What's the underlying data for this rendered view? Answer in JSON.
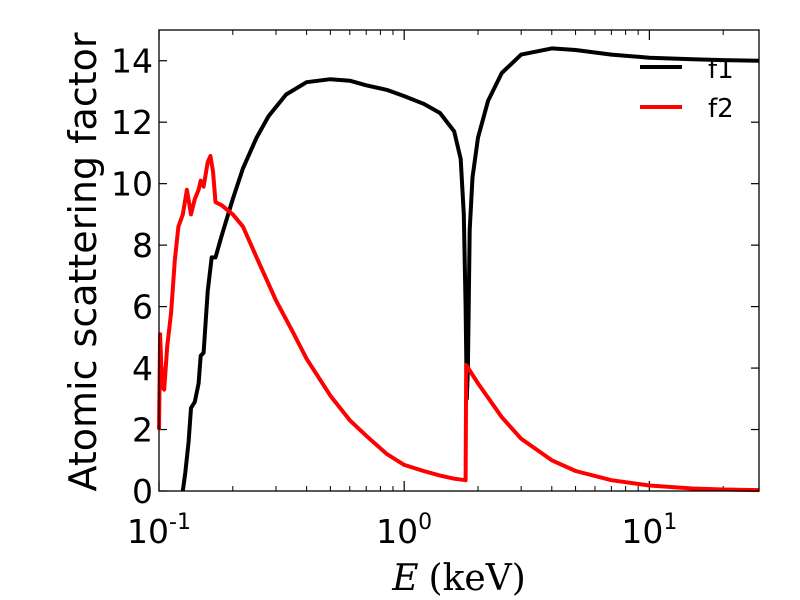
{
  "chart_data": {
    "type": "line",
    "title": "",
    "xlabel": {
      "var": "E",
      "unit": "(keV)"
    },
    "ylabel": "Atomic scattering factor",
    "xscale": "log",
    "xlim": [
      0.1,
      28
    ],
    "ylim": [
      0,
      15
    ],
    "grid": false,
    "legend_position": "top-right",
    "y_ticks": [
      "0",
      "2",
      "4",
      "6",
      "8",
      "10",
      "12",
      "14"
    ],
    "x_ticks": [
      {
        "base": "10",
        "exp": "-1"
      },
      {
        "base": "10",
        "exp": "0"
      },
      {
        "base": "10",
        "exp": "1"
      }
    ],
    "series": [
      {
        "name": "f1",
        "color": "#000000",
        "points": [
          [
            0.125,
            0.0
          ],
          [
            0.128,
            0.6
          ],
          [
            0.132,
            1.6
          ],
          [
            0.135,
            2.7
          ],
          [
            0.14,
            2.9
          ],
          [
            0.145,
            3.5
          ],
          [
            0.148,
            4.4
          ],
          [
            0.152,
            4.5
          ],
          [
            0.158,
            6.5
          ],
          [
            0.164,
            7.6
          ],
          [
            0.17,
            7.6
          ],
          [
            0.18,
            8.3
          ],
          [
            0.2,
            9.5
          ],
          [
            0.22,
            10.5
          ],
          [
            0.25,
            11.5
          ],
          [
            0.28,
            12.2
          ],
          [
            0.33,
            12.9
          ],
          [
            0.4,
            13.3
          ],
          [
            0.5,
            13.4
          ],
          [
            0.6,
            13.35
          ],
          [
            0.7,
            13.2
          ],
          [
            0.85,
            13.05
          ],
          [
            1.0,
            12.85
          ],
          [
            1.2,
            12.6
          ],
          [
            1.4,
            12.3
          ],
          [
            1.6,
            11.7
          ],
          [
            1.7,
            10.8
          ],
          [
            1.75,
            9.0
          ],
          [
            1.78,
            6.0
          ],
          [
            1.8,
            3.0
          ],
          [
            1.82,
            4.0
          ],
          [
            1.85,
            8.5
          ],
          [
            1.9,
            10.2
          ],
          [
            2.0,
            11.5
          ],
          [
            2.2,
            12.7
          ],
          [
            2.5,
            13.6
          ],
          [
            3.0,
            14.2
          ],
          [
            4.0,
            14.4
          ],
          [
            5.0,
            14.35
          ],
          [
            7.0,
            14.2
          ],
          [
            10.0,
            14.1
          ],
          [
            15.0,
            14.05
          ],
          [
            20.0,
            14.02
          ],
          [
            28.0,
            14.0
          ]
        ]
      },
      {
        "name": "f2",
        "color": "#ff0000",
        "points": [
          [
            0.1,
            2.0
          ],
          [
            0.101,
            5.1
          ],
          [
            0.103,
            3.4
          ],
          [
            0.105,
            3.3
          ],
          [
            0.108,
            4.7
          ],
          [
            0.112,
            5.8
          ],
          [
            0.116,
            7.5
          ],
          [
            0.12,
            8.6
          ],
          [
            0.125,
            9.0
          ],
          [
            0.13,
            9.8
          ],
          [
            0.135,
            9.0
          ],
          [
            0.14,
            9.5
          ],
          [
            0.145,
            9.8
          ],
          [
            0.148,
            10.1
          ],
          [
            0.152,
            9.9
          ],
          [
            0.158,
            10.7
          ],
          [
            0.162,
            10.9
          ],
          [
            0.166,
            10.4
          ],
          [
            0.17,
            9.4
          ],
          [
            0.18,
            9.3
          ],
          [
            0.2,
            9.0
          ],
          [
            0.22,
            8.6
          ],
          [
            0.25,
            7.6
          ],
          [
            0.3,
            6.2
          ],
          [
            0.35,
            5.2
          ],
          [
            0.4,
            4.3
          ],
          [
            0.5,
            3.1
          ],
          [
            0.6,
            2.3
          ],
          [
            0.7,
            1.8
          ],
          [
            0.85,
            1.2
          ],
          [
            1.0,
            0.85
          ],
          [
            1.2,
            0.65
          ],
          [
            1.4,
            0.5
          ],
          [
            1.6,
            0.4
          ],
          [
            1.78,
            0.35
          ],
          [
            1.79,
            4.1
          ],
          [
            2.0,
            3.5
          ],
          [
            2.5,
            2.4
          ],
          [
            3.0,
            1.7
          ],
          [
            4.0,
            1.0
          ],
          [
            5.0,
            0.65
          ],
          [
            7.0,
            0.35
          ],
          [
            10.0,
            0.18
          ],
          [
            15.0,
            0.08
          ],
          [
            20.0,
            0.05
          ],
          [
            28.0,
            0.03
          ]
        ]
      }
    ]
  }
}
